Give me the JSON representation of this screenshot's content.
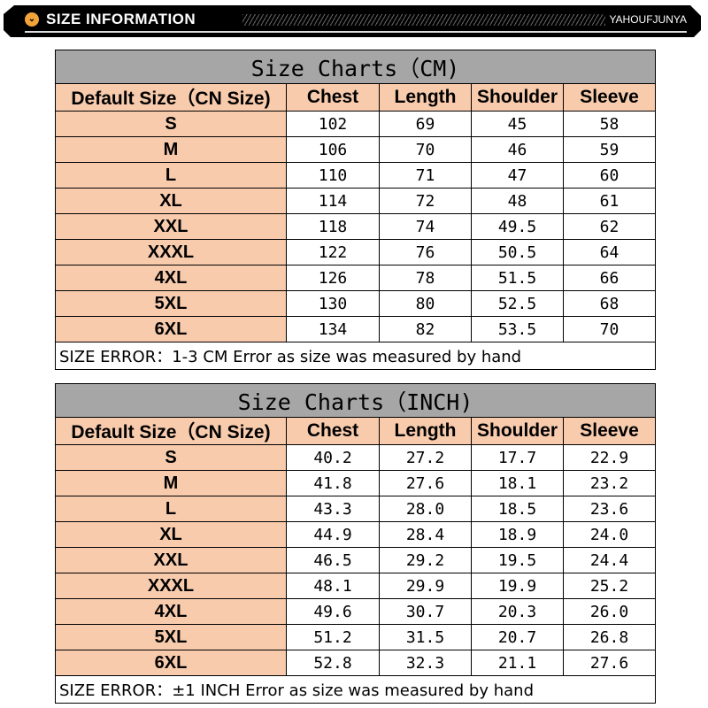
{
  "banner": {
    "title": "SIZE INFORMATION",
    "brand": "YAHOUFJUNYA",
    "icon": "chevron-down-icon"
  },
  "tables": [
    {
      "title": "Size Charts（CM)",
      "headers": [
        "Default Size（CN Size)",
        "Chest",
        "Length",
        "Shoulder",
        "Sleeve"
      ],
      "rows": [
        [
          "S",
          "102",
          "69",
          "45",
          "58"
        ],
        [
          "M",
          "106",
          "70",
          "46",
          "59"
        ],
        [
          "L",
          "110",
          "71",
          "47",
          "60"
        ],
        [
          "XL",
          "114",
          "72",
          "48",
          "61"
        ],
        [
          "XXL",
          "118",
          "74",
          "49.5",
          "62"
        ],
        [
          "XXXL",
          "122",
          "76",
          "50.5",
          "64"
        ],
        [
          "4XL",
          "126",
          "78",
          "51.5",
          "66"
        ],
        [
          "5XL",
          "130",
          "80",
          "52.5",
          "68"
        ],
        [
          "6XL",
          "134",
          "82",
          "53.5",
          "70"
        ]
      ],
      "footer": "SIZE ERROR：1-3 CM Error as size was measured by hand"
    },
    {
      "title": "Size Charts（INCH)",
      "headers": [
        "Default Size（CN Size)",
        "Chest",
        "Length",
        "Shoulder",
        "Sleeve"
      ],
      "rows": [
        [
          "S",
          "40.2",
          "27.2",
          "17.7",
          "22.9"
        ],
        [
          "M",
          "41.8",
          "27.6",
          "18.1",
          "23.2"
        ],
        [
          "L",
          "43.3",
          "28.0",
          "18.5",
          "23.6"
        ],
        [
          "XL",
          "44.9",
          "28.4",
          "18.9",
          "24.0"
        ],
        [
          "XXL",
          "46.5",
          "29.2",
          "19.5",
          "24.4"
        ],
        [
          "XXXL",
          "48.1",
          "29.9",
          "19.9",
          "25.2"
        ],
        [
          "4XL",
          "49.6",
          "30.7",
          "20.3",
          "26.0"
        ],
        [
          "5XL",
          "51.2",
          "31.5",
          "20.7",
          "26.8"
        ],
        [
          "6XL",
          "52.8",
          "32.3",
          "21.1",
          "27.6"
        ]
      ],
      "footer": "SIZE ERROR：±1 INCH Error as size was measured by hand"
    }
  ],
  "colors": {
    "title_bg": "#a6a6a6",
    "accent_bg": "#f8cbad"
  }
}
